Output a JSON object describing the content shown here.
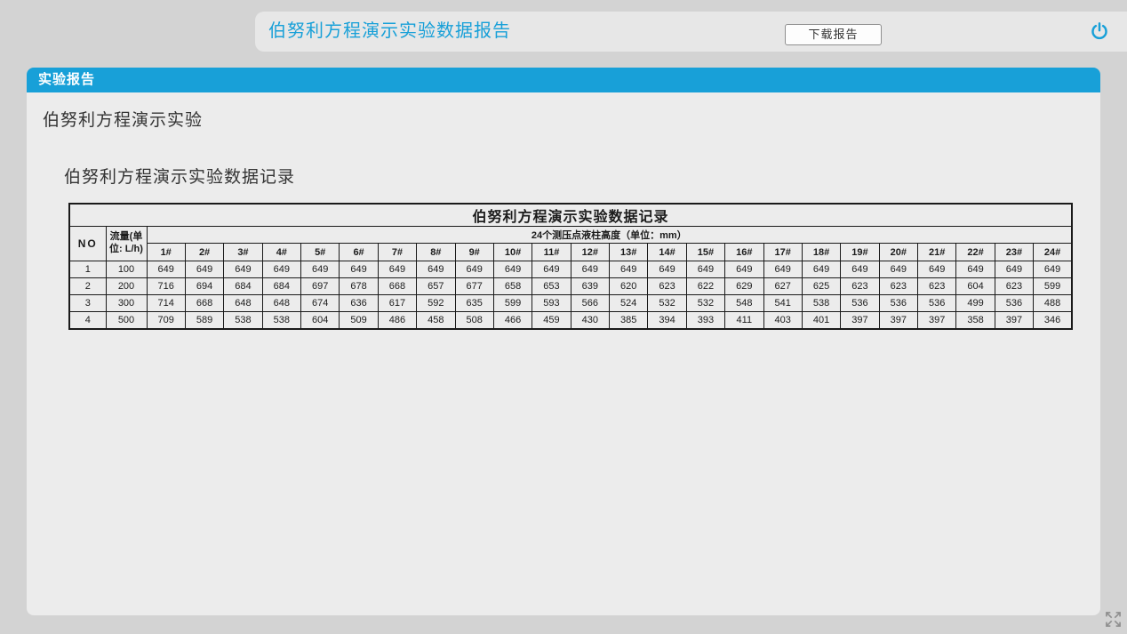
{
  "topbar": {
    "title": "伯努利方程演示实验数据报告",
    "download_button_label": "下载报告"
  },
  "icons": {
    "power": "power-icon",
    "expand": "fullscreen-expand-icon"
  },
  "panel": {
    "header": "实验报告",
    "section_title": "伯努利方程演示实验",
    "subsection_title": "伯努利方程演示实验数据记录"
  },
  "table": {
    "title": "伯努利方程演示实验数据记录",
    "no_header": "NO",
    "flow_header": "流量(单位: L/h)",
    "group_header": "24个测压点液柱高度（单位：mm）",
    "point_headers": [
      "1#",
      "2#",
      "3#",
      "4#",
      "5#",
      "6#",
      "7#",
      "8#",
      "9#",
      "10#",
      "11#",
      "12#",
      "13#",
      "14#",
      "15#",
      "16#",
      "17#",
      "18#",
      "19#",
      "20#",
      "21#",
      "22#",
      "23#",
      "24#"
    ],
    "rows": [
      {
        "no": "1",
        "flow": "100",
        "values": [
          649,
          649,
          649,
          649,
          649,
          649,
          649,
          649,
          649,
          649,
          649,
          649,
          649,
          649,
          649,
          649,
          649,
          649,
          649,
          649,
          649,
          649,
          649,
          649
        ]
      },
      {
        "no": "2",
        "flow": "200",
        "values": [
          716,
          694,
          684,
          684,
          697,
          678,
          668,
          657,
          677,
          658,
          653,
          639,
          620,
          623,
          622,
          629,
          627,
          625,
          623,
          623,
          623,
          604,
          623,
          599
        ]
      },
      {
        "no": "3",
        "flow": "300",
        "values": [
          714,
          668,
          648,
          648,
          674,
          636,
          617,
          592,
          635,
          599,
          593,
          566,
          524,
          532,
          532,
          548,
          541,
          538,
          536,
          536,
          536,
          499,
          536,
          488
        ]
      },
      {
        "no": "4",
        "flow": "500",
        "values": [
          709,
          589,
          538,
          538,
          604,
          509,
          486,
          458,
          508,
          466,
          459,
          430,
          385,
          394,
          393,
          411,
          403,
          401,
          397,
          397,
          397,
          358,
          397,
          346
        ]
      }
    ]
  },
  "colors": {
    "accent_blue": "#18a0d8",
    "page_bg": "#d3d3d3",
    "toolbar_bg": "#e7e7e7",
    "panel_bg": "#ececec",
    "table_border": "#1a1a1a"
  }
}
